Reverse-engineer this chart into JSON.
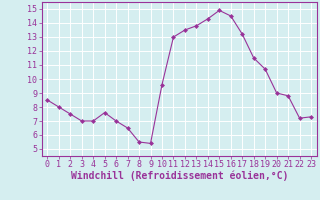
{
  "x": [
    0,
    1,
    2,
    3,
    4,
    5,
    6,
    7,
    8,
    9,
    10,
    11,
    12,
    13,
    14,
    15,
    16,
    17,
    18,
    19,
    20,
    21,
    22,
    23
  ],
  "y": [
    8.5,
    8.0,
    7.5,
    7.0,
    7.0,
    7.6,
    7.0,
    6.5,
    5.5,
    5.4,
    9.6,
    13.0,
    13.5,
    13.8,
    14.3,
    14.9,
    14.5,
    13.2,
    11.5,
    10.7,
    9.0,
    8.8,
    7.2,
    7.3
  ],
  "line_color": "#993399",
  "marker": "D",
  "marker_size": 2,
  "bg_color": "#d5eef0",
  "grid_color": "#ffffff",
  "xlabel": "Windchill (Refroidissement éolien,°C)",
  "xlabel_color": "#993399",
  "tick_color": "#993399",
  "ylim": [
    4.5,
    15.5
  ],
  "xlim": [
    -0.5,
    23.5
  ],
  "yticks": [
    5,
    6,
    7,
    8,
    9,
    10,
    11,
    12,
    13,
    14,
    15
  ],
  "xticks": [
    0,
    1,
    2,
    3,
    4,
    5,
    6,
    7,
    8,
    9,
    10,
    11,
    12,
    13,
    14,
    15,
    16,
    17,
    18,
    19,
    20,
    21,
    22,
    23
  ],
  "tick_fontsize": 6,
  "xlabel_fontsize": 7,
  "spine_color": "#993399",
  "figsize": [
    3.2,
    2.0
  ],
  "dpi": 100
}
